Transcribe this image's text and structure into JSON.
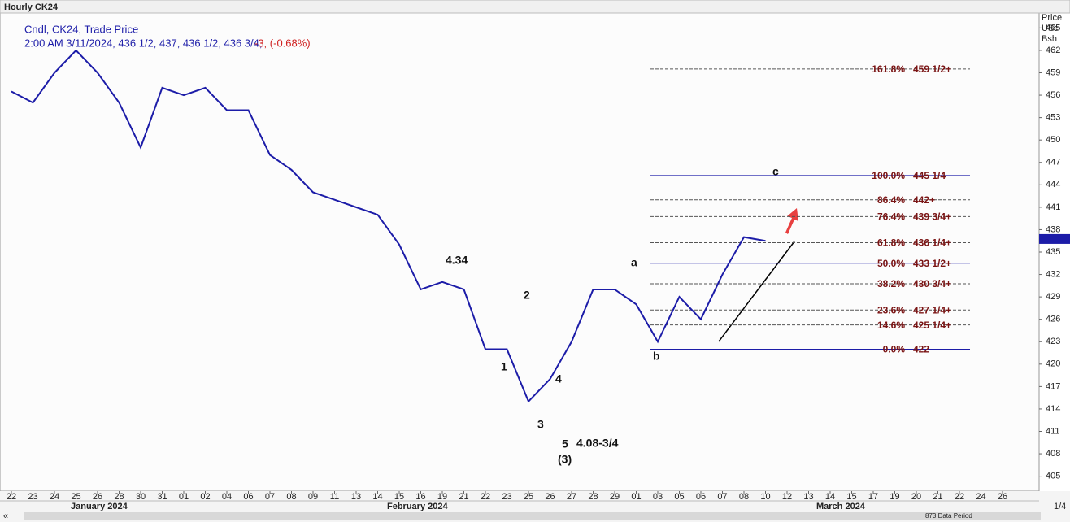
{
  "chart_data": {
    "type": "line",
    "title": "Hourly CK24",
    "legend_title": "Cndl, CK24, Trade Price",
    "legend_quote": "2:00 AM 3/11/2024, 436 1/2, 437, 436 1/2, 436 3/4,",
    "legend_change": "-3, (-0.68%)",
    "axis_header": [
      "Price",
      "USc",
      "Bsh"
    ],
    "footer_note": "873 Data Period",
    "zoom_label": "1/4",
    "months": [
      "January 2024",
      "February 2024",
      "March 2024"
    ],
    "categories": [
      "22",
      "23",
      "24",
      "25",
      "26",
      "28",
      "30",
      "31",
      "01",
      "02",
      "04",
      "06",
      "07",
      "08",
      "09",
      "11",
      "13",
      "14",
      "15",
      "16",
      "19",
      "21",
      "22",
      "23",
      "25",
      "26",
      "27",
      "28",
      "29",
      "01",
      "03",
      "05",
      "06",
      "07",
      "08",
      "10",
      "12",
      "13",
      "14",
      "15",
      "17",
      "19",
      "20",
      "21",
      "22",
      "24",
      "26"
    ],
    "series": [
      {
        "name": "CK24",
        "color": "#1c1ca8",
        "values": [
          456.5,
          455,
          459,
          462,
          459,
          455,
          449,
          457,
          456,
          457,
          454,
          454,
          448,
          446,
          443,
          442,
          441,
          440,
          436,
          430,
          431,
          430,
          422,
          422,
          415,
          418,
          423,
          430,
          430,
          428,
          423,
          429,
          426,
          432,
          437,
          436.5,
          null,
          null,
          null,
          null,
          null,
          null,
          null,
          null,
          null,
          null,
          null
        ]
      }
    ],
    "last_price": 436.75,
    "ylim": [
      403,
      467
    ],
    "yticks": [
      405,
      408,
      411,
      414,
      417,
      420,
      423,
      426,
      429,
      432,
      435,
      438,
      441,
      444,
      447,
      450,
      453,
      456,
      459,
      462,
      465
    ],
    "fib_levels": [
      {
        "value": 459.5,
        "pct": "161.8%",
        "label": "459 1/2+",
        "solid": false
      },
      {
        "value": 445.25,
        "pct": "100.0%",
        "label": "445 1/4",
        "solid": true
      },
      {
        "value": 442,
        "pct": "86.4%",
        "label": "442+",
        "solid": false
      },
      {
        "value": 439.75,
        "pct": "76.4%",
        "label": "439 3/4+",
        "solid": false
      },
      {
        "value": 436.25,
        "pct": "61.8%",
        "label": "436 1/4+",
        "solid": false
      },
      {
        "value": 433.5,
        "pct": "50.0%",
        "label": "433 1/2+",
        "solid": true
      },
      {
        "value": 430.75,
        "pct": "38.2%",
        "label": "430 3/4+",
        "solid": false
      },
      {
        "value": 427.25,
        "pct": "23.6%",
        "label": "427 1/4+",
        "solid": false
      },
      {
        "value": 425.25,
        "pct": "14.6%",
        "label": "425 1/4+",
        "solid": false
      },
      {
        "value": 422,
        "pct": "0.0%",
        "label": "422",
        "solid": true
      }
    ],
    "wave_labels": [
      "4.34",
      "2",
      "1",
      "4",
      "3",
      "5",
      "4.08-3/4",
      "(3)",
      "a",
      "b",
      "c"
    ]
  }
}
